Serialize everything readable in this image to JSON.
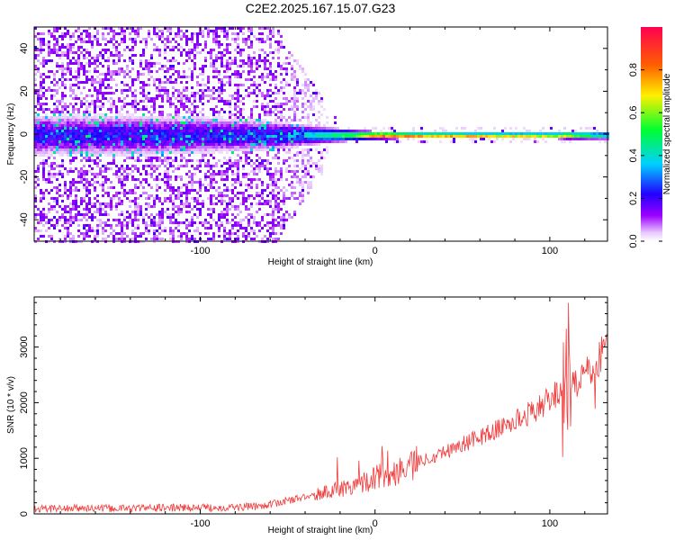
{
  "title": "C2E2.2025.167.15.07.G23",
  "chart_data": [
    {
      "type": "heatmap",
      "xlabel": "Height of straight line (km)",
      "ylabel": "Frequency (Hz)",
      "xlim": [
        -195,
        133
      ],
      "ylim": [
        -50,
        50
      ],
      "xticks": [
        -100,
        0,
        100
      ],
      "yticks": [
        -40,
        -20,
        0,
        20,
        40
      ],
      "grid": false,
      "description_points": {
        "x": [
          -195,
          -150,
          -100,
          -60,
          -30,
          -10,
          0,
          20,
          50,
          80,
          100,
          110,
          133
        ],
        "band_halfwidth_hz": [
          10,
          10,
          9,
          7,
          4,
          2.5,
          2,
          1.5,
          1.5,
          1.5,
          1.5,
          2,
          2
        ],
        "peak_amplitude": [
          0.25,
          0.25,
          0.25,
          0.3,
          0.45,
          0.65,
          0.9,
          0.95,
          0.9,
          0.85,
          0.8,
          0.7,
          0.45
        ]
      },
      "colorbar": {
        "label": "Normalized spectral amplitude",
        "range": [
          0.0,
          1.0
        ],
        "ticks": [
          "0.0",
          "0.2",
          "0.4",
          "0.6",
          "0.8"
        ],
        "tick_values": [
          0.0,
          0.2,
          0.4,
          0.6,
          0.8
        ],
        "colormap": [
          "#ffffff",
          "#9b00ff",
          "#2200ff",
          "#00d0ff",
          "#00ff30",
          "#fff000",
          "#ff6000",
          "#ff0040"
        ]
      }
    },
    {
      "type": "line",
      "xlabel": "Height of straight line (km)",
      "ylabel": "SNR (10 * v/v)",
      "xlim": [
        -195,
        133
      ],
      "ylim": [
        0,
        3900
      ],
      "xticks": [
        -100,
        0,
        100
      ],
      "yticks": [
        0,
        1000,
        2000,
        3000
      ],
      "grid": false,
      "color": "#ef3b3b",
      "series": [
        {
          "x": [
            -195,
            -180,
            -160,
            -140,
            -120,
            -100,
            -80,
            -70,
            -60,
            -50,
            -40,
            -30,
            -20,
            -10,
            0,
            10,
            20,
            30,
            40,
            50,
            60,
            70,
            80,
            90,
            100,
            105,
            108,
            110,
            112,
            115,
            120,
            125,
            128,
            130,
            133
          ],
          "values": [
            90,
            100,
            100,
            100,
            110,
            110,
            120,
            130,
            170,
            240,
            300,
            380,
            450,
            540,
            650,
            750,
            880,
            1000,
            1120,
            1250,
            1380,
            1520,
            1670,
            1840,
            2050,
            2200,
            2300,
            2000,
            2450,
            2350,
            2500,
            2600,
            2750,
            2950,
            3150
          ]
        }
      ]
    }
  ]
}
